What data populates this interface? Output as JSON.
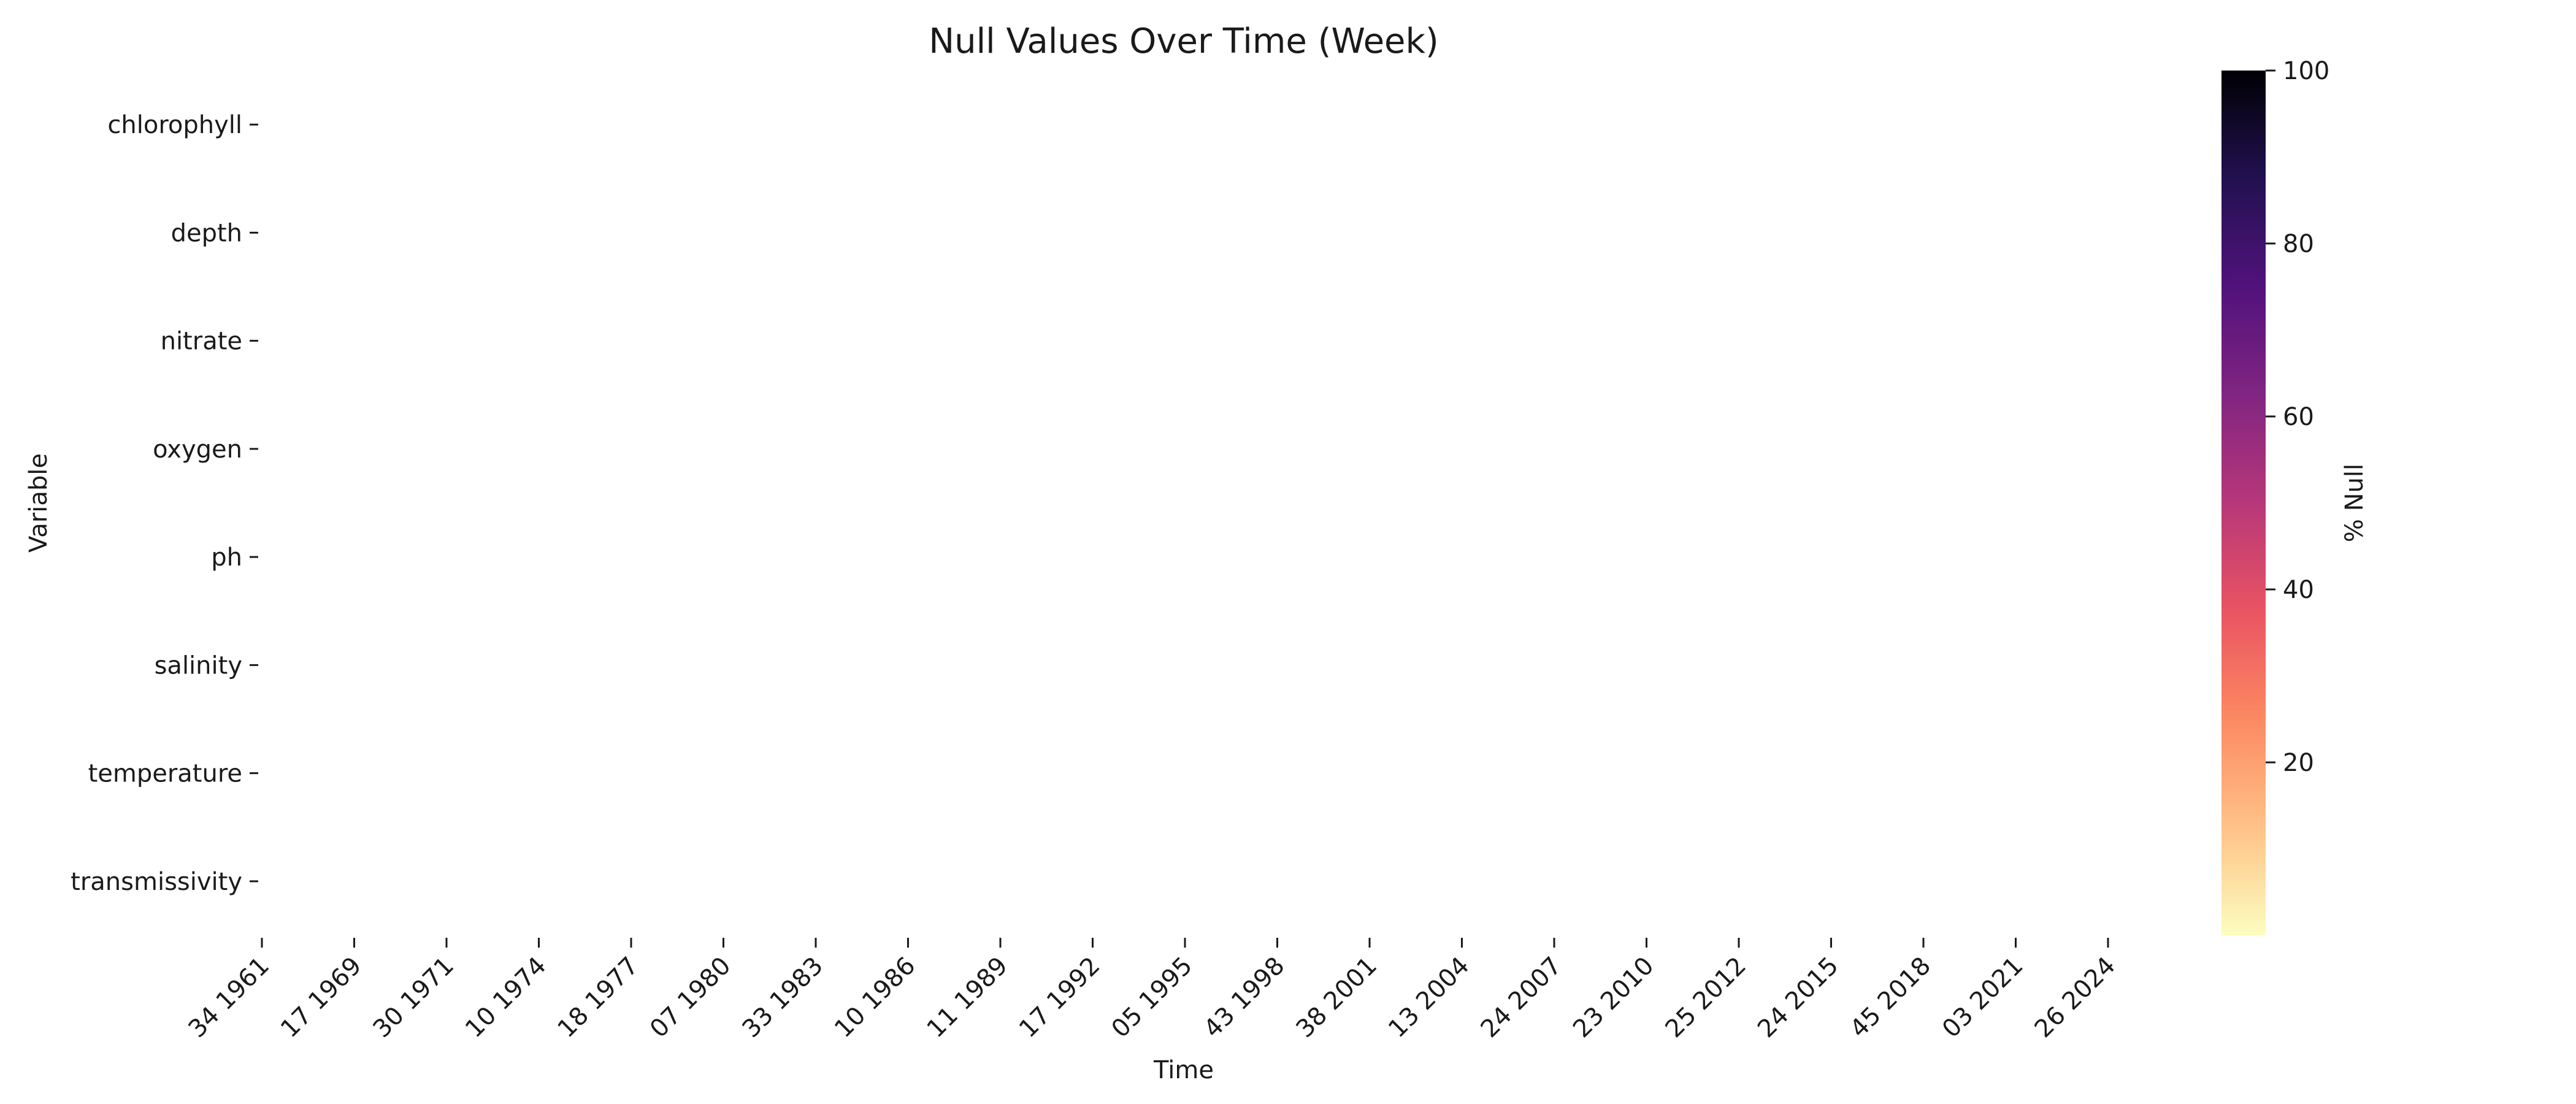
{
  "chart_data": {
    "type": "heatmap",
    "title": "Null Values Over Time (Week)",
    "xlabel": "Time",
    "ylabel": "Variable",
    "rows": [
      "chlorophyll",
      "depth",
      "nitrate",
      "oxygen",
      "ph",
      "salinity",
      "temperature",
      "transmissivity"
    ],
    "x_tick_labels": [
      "34 1961",
      "17 1969",
      "30 1971",
      "10 1974",
      "18 1977",
      "07 1980",
      "33 1983",
      "10 1986",
      "11 1989",
      "17 1992",
      "05 1995",
      "43 1998",
      "38 2001",
      "13 2004",
      "24 2007",
      "23 2010",
      "25 2012",
      "24 2015",
      "45 2018",
      "03 2021",
      "26 2024"
    ],
    "values_note": "",
    "colorbar": {
      "label": "% Null",
      "range": [
        0,
        100
      ],
      "ticks": [
        20,
        40,
        60,
        80,
        100
      ],
      "colormap": "magma_r",
      "stops": [
        "#fcfdbf",
        "#fec287",
        "#fc8961",
        "#e95462",
        "#b73779",
        "#812581",
        "#51127c",
        "#221150",
        "#000004"
      ]
    },
    "grid": false
  }
}
